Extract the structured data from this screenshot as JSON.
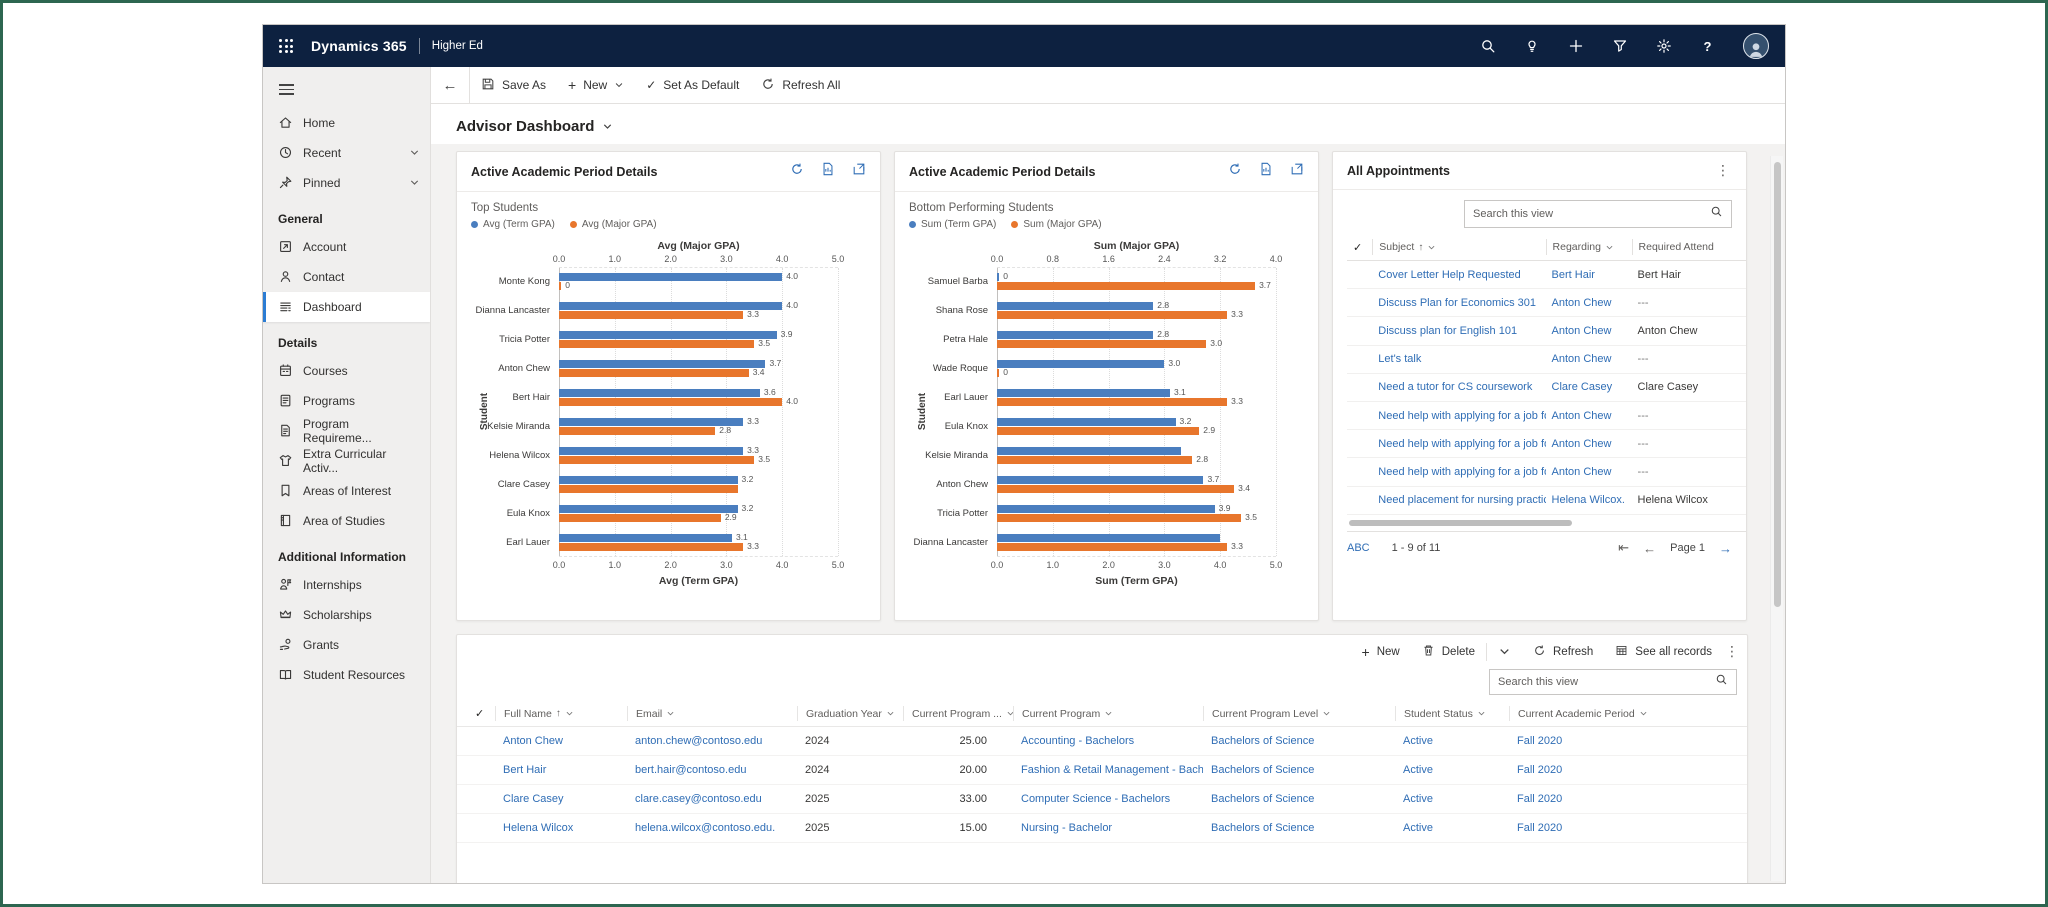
{
  "navbar": {
    "app_name": "Dynamics 365",
    "app_area": "Higher Ed",
    "icons": [
      "search-icon",
      "lightbulb-icon",
      "plus-icon",
      "filter-icon",
      "gear-icon",
      "help-icon",
      "avatar"
    ]
  },
  "sidebar": {
    "sections": [
      {
        "header": "",
        "items": [
          {
            "label": "Home",
            "icon": "home",
            "chevron": false,
            "selected": false
          },
          {
            "label": "Recent",
            "icon": "clock",
            "chevron": true,
            "selected": false
          },
          {
            "label": "Pinned",
            "icon": "pin",
            "chevron": true,
            "selected": false
          }
        ]
      },
      {
        "header": "General",
        "items": [
          {
            "label": "Account",
            "icon": "account",
            "chevron": false,
            "selected": false
          },
          {
            "label": "Contact",
            "icon": "contact",
            "chevron": false,
            "selected": false
          },
          {
            "label": "Dashboard",
            "icon": "dashboard",
            "chevron": false,
            "selected": true
          }
        ]
      },
      {
        "header": "Details",
        "items": [
          {
            "label": "Courses",
            "icon": "courses",
            "chevron": false,
            "selected": false
          },
          {
            "label": "Programs",
            "icon": "programs",
            "chevron": false,
            "selected": false
          },
          {
            "label": "Program Requireme...",
            "icon": "program-req",
            "chevron": false,
            "selected": false
          },
          {
            "label": "Extra Curricular Activ...",
            "icon": "shirt",
            "chevron": false,
            "selected": false
          },
          {
            "label": "Areas of Interest",
            "icon": "book",
            "chevron": false,
            "selected": false
          },
          {
            "label": "Area of Studies",
            "icon": "book2",
            "chevron": false,
            "selected": false
          }
        ]
      },
      {
        "header": "Additional Information",
        "items": [
          {
            "label": "Internships",
            "icon": "internship",
            "chevron": false,
            "selected": false
          },
          {
            "label": "Scholarships",
            "icon": "crown",
            "chevron": false,
            "selected": false
          },
          {
            "label": "Grants",
            "icon": "grant",
            "chevron": false,
            "selected": false
          },
          {
            "label": "Student Resources",
            "icon": "open-book",
            "chevron": false,
            "selected": false
          }
        ]
      }
    ]
  },
  "command_bar": {
    "save_as": "Save As",
    "new": "New",
    "set_as_default": "Set As Default",
    "refresh_all": "Refresh All"
  },
  "page_title": "Advisor Dashboard",
  "chart_data": [
    {
      "type": "bar",
      "orientation": "horizontal",
      "card_title": "Active Academic Period Details",
      "title": "Top Students",
      "legend": [
        {
          "name": "Avg (Term GPA)",
          "color": "#4a7ebf"
        },
        {
          "name": "Avg (Major GPA)",
          "color": "#e8762c"
        }
      ],
      "top_axis": {
        "label": "Avg (Major GPA)",
        "ticks": [
          "0.0",
          "1.0",
          "2.0",
          "3.0",
          "4.0",
          "5.0"
        ],
        "max": 5
      },
      "bottom_axis": {
        "label": "Avg (Term GPA)",
        "ticks": [
          "0.0",
          "1.0",
          "2.0",
          "3.0",
          "4.0",
          "5.0"
        ],
        "max": 5
      },
      "ylabel": "Student",
      "rows": [
        {
          "name": "Monte Kong",
          "term": 4.0,
          "term_label": "4.0",
          "major": 0,
          "major_label": "0"
        },
        {
          "name": "Dianna Lancaster",
          "term": 4.0,
          "term_label": "4.0",
          "major": 3.3,
          "major_label": "3.3"
        },
        {
          "name": "Tricia Potter",
          "term": 3.9,
          "term_label": "3.9",
          "major": 3.5,
          "major_label": "3.5"
        },
        {
          "name": "Anton Chew",
          "term": 3.7,
          "term_label": "3.7",
          "major": 3.4,
          "major_label": "3.4"
        },
        {
          "name": "Bert Hair",
          "term": 3.6,
          "term_label": "3.6",
          "major": 4.0,
          "major_label": "4.0"
        },
        {
          "name": "Kelsie Miranda",
          "term": 3.3,
          "term_label": "3.3",
          "major": 2.8,
          "major_label": "2.8"
        },
        {
          "name": "Helena Wilcox",
          "term": 3.3,
          "term_label": "3.3",
          "major": 3.5,
          "major_label": "3.5"
        },
        {
          "name": "Clare Casey",
          "term": 3.2,
          "term_label": "3.2",
          "major": 3.2,
          "major_label": ""
        },
        {
          "name": "Eula Knox",
          "term": 3.2,
          "term_label": "3.2",
          "major": 2.9,
          "major_label": "2.9"
        },
        {
          "name": "Earl Lauer",
          "term": 3.1,
          "term_label": "3.1",
          "major": 3.3,
          "major_label": "3.3"
        }
      ]
    },
    {
      "type": "bar",
      "orientation": "horizontal",
      "card_title": "Active Academic Period Details",
      "title": "Bottom Performing Students",
      "legend": [
        {
          "name": "Sum (Term GPA)",
          "color": "#4a7ebf"
        },
        {
          "name": "Sum (Major GPA)",
          "color": "#e8762c"
        }
      ],
      "top_axis": {
        "label": "Sum (Major GPA)",
        "ticks": [
          "0.0",
          "0.8",
          "1.6",
          "2.4",
          "3.2",
          "4.0"
        ],
        "max": 4
      },
      "bottom_axis": {
        "label": "Sum (Term GPA)",
        "ticks": [
          "0.0",
          "1.0",
          "2.0",
          "3.0",
          "4.0",
          "5.0"
        ],
        "max": 5
      },
      "ylabel": "Student",
      "rows": [
        {
          "name": "Samuel Barba",
          "term": 0,
          "term_label": "0",
          "major": 3.7,
          "major_label": "3.7"
        },
        {
          "name": "Shana Rose",
          "term": 2.8,
          "term_label": "2.8",
          "major": 3.3,
          "major_label": "3.3"
        },
        {
          "name": "Petra Hale",
          "term": 2.8,
          "term_label": "2.8",
          "major": 3.0,
          "major_label": "3.0"
        },
        {
          "name": "Wade Roque",
          "term": 3.0,
          "term_label": "3.0",
          "major": 0,
          "major_label": "0"
        },
        {
          "name": "Earl Lauer",
          "term": 3.1,
          "term_label": "3.1",
          "major": 3.3,
          "major_label": "3.3"
        },
        {
          "name": "Eula Knox",
          "term": 3.2,
          "term_label": "3.2",
          "major": 2.9,
          "major_label": "2.9"
        },
        {
          "name": "Kelsie Miranda",
          "term": 3.3,
          "term_label": "",
          "major": 2.8,
          "major_label": "2.8"
        },
        {
          "name": "Anton Chew",
          "term": 3.7,
          "term_label": "3.7",
          "major": 3.4,
          "major_label": "3.4"
        },
        {
          "name": "Tricia Potter",
          "term": 3.9,
          "term_label": "3.9",
          "major": 3.5,
          "major_label": "3.5"
        },
        {
          "name": "Dianna Lancaster",
          "term": 4.0,
          "term_label": "",
          "major": 3.3,
          "major_label": "3.3"
        }
      ]
    }
  ],
  "appointments": {
    "title": "All Appointments",
    "search_placeholder": "Search this view",
    "columns": {
      "subject": "Subject",
      "regarding": "Regarding",
      "required": "Required Attend"
    },
    "rows": [
      {
        "subject": "Cover Letter Help Requested",
        "regarding": "Bert Hair",
        "required": "Bert Hair"
      },
      {
        "subject": "Discuss Plan for Economics 301",
        "regarding": "Anton Chew",
        "required": "---"
      },
      {
        "subject": "Discuss plan for English 101",
        "regarding": "Anton Chew",
        "required": "Anton Chew"
      },
      {
        "subject": "Let's talk",
        "regarding": "Anton Chew",
        "required": "---"
      },
      {
        "subject": "Need a tutor for CS coursework",
        "regarding": "Clare Casey",
        "required": "Clare Casey"
      },
      {
        "subject": "Need help with applying for a job for th",
        "regarding": "Anton Chew",
        "required": "---"
      },
      {
        "subject": "Need help with applying for a job for th",
        "regarding": "Anton Chew",
        "required": "---"
      },
      {
        "subject": "Need help with applying for a job for th",
        "regarding": "Anton Chew",
        "required": "---"
      },
      {
        "subject": "Need placement for nursing practicum.",
        "regarding": "Helena Wilcox.",
        "required": "Helena Wilcox"
      }
    ],
    "footer": {
      "jump": "ABC",
      "range": "1 - 9 of 11",
      "page": "Page 1"
    }
  },
  "students_grid": {
    "commands": {
      "new": "New",
      "delete": "Delete",
      "refresh": "Refresh",
      "see_all": "See all records"
    },
    "search_placeholder": "Search this view",
    "columns": [
      "Full Name",
      "Email",
      "Graduation Year",
      "Current Program ...",
      "Current Program",
      "Current Program Level",
      "Student Status",
      "Current Academic Period"
    ],
    "rows": [
      {
        "full_name": "Anton Chew",
        "email": "anton.chew@contoso.edu",
        "grad_year": "2024",
        "program_num": "25.00",
        "program": "Accounting - Bachelors",
        "level": "Bachelors of Science",
        "status": "Active",
        "period": "Fall 2020"
      },
      {
        "full_name": "Bert Hair",
        "email": "bert.hair@contoso.edu",
        "grad_year": "2024",
        "program_num": "20.00",
        "program": "Fashion & Retail Management - Bach",
        "level": "Bachelors of Science",
        "status": "Active",
        "period": "Fall 2020"
      },
      {
        "full_name": "Clare Casey",
        "email": "clare.casey@contoso.edu",
        "grad_year": "2025",
        "program_num": "33.00",
        "program": "Computer Science - Bachelors",
        "level": "Bachelors of Science",
        "status": "Active",
        "period": "Fall 2020"
      },
      {
        "full_name": "Helena Wilcox",
        "email": "helena.wilcox@contoso.edu.",
        "grad_year": "2025",
        "program_num": "15.00",
        "program": "Nursing - Bachelor",
        "level": "Bachelors of Science",
        "status": "Active",
        "period": "Fall 2020"
      }
    ]
  }
}
